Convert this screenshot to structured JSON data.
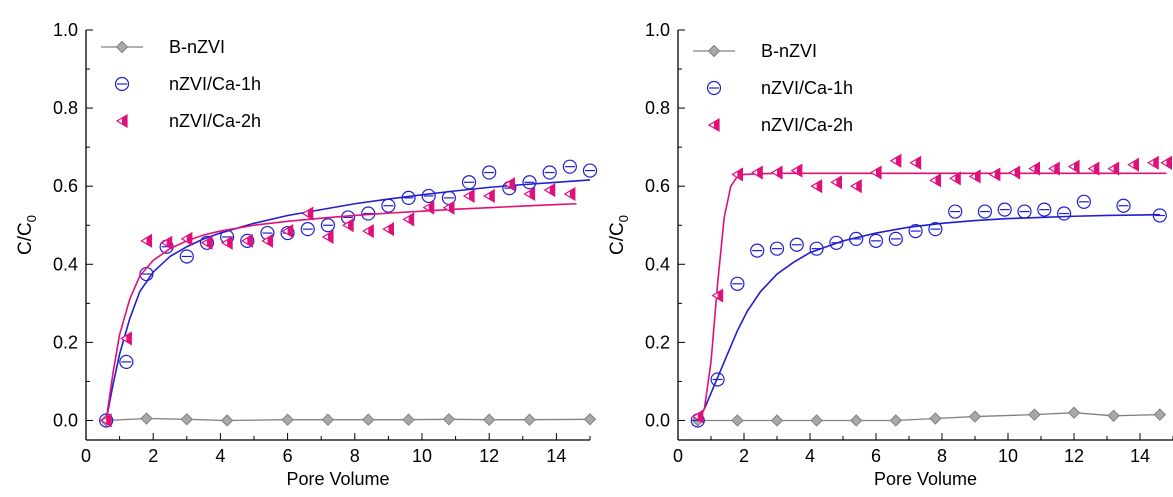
{
  "colors": {
    "b_nzvi": "#808080",
    "ca1h": "#1f1fd0",
    "ca2h": "#e0107a",
    "axis": "#000000"
  },
  "chart_data": [
    {
      "type": "scatter",
      "xlabel": "Pore Volume",
      "ylabel_main": "C/C",
      "ylabel_sub": "0",
      "xlim": [
        0,
        15
      ],
      "ylim": [
        -0.05,
        1.0
      ],
      "xticks": [
        0,
        2,
        4,
        6,
        8,
        10,
        12,
        14
      ],
      "yticks": [
        0.0,
        0.2,
        0.4,
        0.6,
        0.8,
        1.0
      ],
      "ytick_labels": [
        "0.0",
        "0.2",
        "0.4",
        "0.6",
        "0.8",
        "1.0"
      ],
      "legend_position": "top-left",
      "series": [
        {
          "name": "B-nZVI",
          "marker": "diamond",
          "connected": true,
          "x": [
            0.6,
            1.8,
            3.0,
            4.2,
            6.0,
            7.2,
            8.4,
            9.6,
            10.8,
            12.0,
            13.2,
            15.0
          ],
          "y": [
            0.0,
            0.005,
            0.003,
            0.0,
            0.002,
            0.002,
            0.002,
            0.002,
            0.003,
            0.002,
            0.002,
            0.003
          ]
        },
        {
          "name": "nZVI/Ca-1h",
          "marker": "circle",
          "fit": "curve",
          "x": [
            0.6,
            1.2,
            1.8,
            2.4,
            3.0,
            3.6,
            4.2,
            4.8,
            5.4,
            6.0,
            6.6,
            7.2,
            7.8,
            8.4,
            9.0,
            9.6,
            10.2,
            10.8,
            11.4,
            12.0,
            12.6,
            13.2,
            13.8,
            14.4,
            15.0
          ],
          "y": [
            0.0,
            0.15,
            0.375,
            0.445,
            0.42,
            0.455,
            0.47,
            0.46,
            0.48,
            0.48,
            0.49,
            0.5,
            0.52,
            0.53,
            0.55,
            0.57,
            0.575,
            0.57,
            0.61,
            0.635,
            0.595,
            0.61,
            0.635,
            0.65,
            0.64
          ],
          "fit_x": [
            0.6,
            0.8,
            1.0,
            1.3,
            1.6,
            2.0,
            2.5,
            3.0,
            3.5,
            4.0,
            5.0,
            6.0,
            7.0,
            8.0,
            9.0,
            10.0,
            11.0,
            12.0,
            13.0,
            14.0,
            15.0
          ],
          "fit_y": [
            0.0,
            0.09,
            0.17,
            0.26,
            0.33,
            0.38,
            0.42,
            0.445,
            0.465,
            0.48,
            0.505,
            0.525,
            0.54,
            0.555,
            0.567,
            0.578,
            0.588,
            0.597,
            0.604,
            0.61,
            0.616
          ]
        },
        {
          "name": "nZVI/Ca-2h",
          "marker": "triangle-left",
          "fit": "curve",
          "x": [
            0.6,
            1.2,
            1.8,
            2.4,
            3.0,
            3.6,
            4.2,
            4.8,
            5.4,
            6.0,
            6.6,
            7.2,
            7.8,
            8.4,
            9.0,
            9.6,
            10.2,
            10.8,
            11.4,
            12.0,
            12.6,
            13.2,
            13.8,
            14.4
          ],
          "y": [
            0.0,
            0.21,
            0.46,
            0.455,
            0.465,
            0.455,
            0.455,
            0.46,
            0.46,
            0.485,
            0.53,
            0.47,
            0.5,
            0.485,
            0.49,
            0.515,
            0.545,
            0.545,
            0.575,
            0.575,
            0.605,
            0.58,
            0.59,
            0.58
          ],
          "fit_x": [
            0.6,
            0.8,
            1.0,
            1.3,
            1.6,
            2.0,
            2.5,
            3.0,
            3.5,
            4.0,
            5.0,
            6.0,
            7.0,
            8.0,
            9.0,
            10.0,
            11.0,
            12.0,
            13.0,
            14.0,
            14.6
          ],
          "fit_y": [
            0.0,
            0.12,
            0.22,
            0.31,
            0.37,
            0.41,
            0.44,
            0.46,
            0.475,
            0.485,
            0.5,
            0.51,
            0.518,
            0.525,
            0.531,
            0.536,
            0.541,
            0.545,
            0.549,
            0.553,
            0.555
          ]
        }
      ]
    },
    {
      "type": "scatter",
      "xlabel": "Pore Volume",
      "ylabel_main": "C/C",
      "ylabel_sub": "0",
      "xlim": [
        0,
        15
      ],
      "ylim": [
        -0.05,
        1.0
      ],
      "xticks": [
        0,
        2,
        4,
        6,
        8,
        10,
        12,
        14
      ],
      "yticks": [
        0.0,
        0.2,
        0.4,
        0.6,
        0.8,
        1.0
      ],
      "ytick_labels": [
        "0.0",
        "0.2",
        "0.4",
        "0.6",
        "0.8",
        "1.0"
      ],
      "legend_position": "top-left",
      "series": [
        {
          "name": "B-nZVI",
          "marker": "diamond",
          "connected": true,
          "x": [
            0.6,
            1.8,
            3.0,
            4.2,
            5.4,
            6.6,
            7.8,
            9.0,
            10.8,
            12.0,
            13.2,
            14.6
          ],
          "y": [
            0.0,
            0.0,
            0.0,
            0.0,
            0.0,
            0.0,
            0.005,
            0.01,
            0.015,
            0.02,
            0.012,
            0.015
          ]
        },
        {
          "name": "nZVI/Ca-1h",
          "marker": "circle",
          "fit": "curve",
          "x": [
            0.6,
            1.2,
            1.8,
            2.4,
            3.0,
            3.6,
            4.2,
            4.8,
            5.4,
            6.0,
            6.6,
            7.2,
            7.8,
            8.4,
            9.3,
            9.9,
            10.5,
            11.1,
            11.7,
            12.3,
            13.5,
            14.6
          ],
          "y": [
            0.0,
            0.105,
            0.35,
            0.435,
            0.44,
            0.45,
            0.44,
            0.455,
            0.465,
            0.46,
            0.465,
            0.485,
            0.49,
            0.535,
            0.535,
            0.54,
            0.535,
            0.54,
            0.53,
            0.56,
            0.55,
            0.525
          ],
          "fit_x": [
            0.6,
            0.8,
            1.0,
            1.2,
            1.5,
            1.8,
            2.1,
            2.5,
            3.0,
            3.5,
            4.0,
            5.0,
            6.0,
            7.0,
            8.0,
            9.0,
            10.0,
            11.0,
            12.0,
            13.0,
            14.6
          ],
          "fit_y": [
            0.0,
            0.03,
            0.07,
            0.11,
            0.17,
            0.23,
            0.28,
            0.33,
            0.375,
            0.405,
            0.43,
            0.46,
            0.48,
            0.495,
            0.505,
            0.512,
            0.517,
            0.52,
            0.523,
            0.525,
            0.527
          ]
        },
        {
          "name": "nZVI/Ca-2h",
          "marker": "triangle-left",
          "fit": "curve",
          "x": [
            0.6,
            1.2,
            1.8,
            2.4,
            3.0,
            3.6,
            4.2,
            4.8,
            5.4,
            6.0,
            6.6,
            7.2,
            7.8,
            8.4,
            9.0,
            9.6,
            10.2,
            10.8,
            11.4,
            12.0,
            12.6,
            13.2,
            13.8,
            14.4,
            14.8
          ],
          "y": [
            0.01,
            0.32,
            0.63,
            0.635,
            0.635,
            0.64,
            0.6,
            0.61,
            0.6,
            0.635,
            0.665,
            0.66,
            0.615,
            0.62,
            0.625,
            0.63,
            0.635,
            0.645,
            0.645,
            0.65,
            0.645,
            0.645,
            0.655,
            0.66,
            0.66
          ],
          "fit_x": [
            0.6,
            0.8,
            1.0,
            1.2,
            1.4,
            1.6,
            1.8,
            2.0,
            2.5,
            3.0,
            4.0,
            6.0,
            8.0,
            10.0,
            12.0,
            14.0,
            14.8
          ],
          "fit_y": [
            0.0,
            0.03,
            0.15,
            0.35,
            0.52,
            0.6,
            0.625,
            0.63,
            0.632,
            0.633,
            0.633,
            0.633,
            0.633,
            0.633,
            0.633,
            0.633,
            0.633
          ]
        }
      ]
    }
  ]
}
